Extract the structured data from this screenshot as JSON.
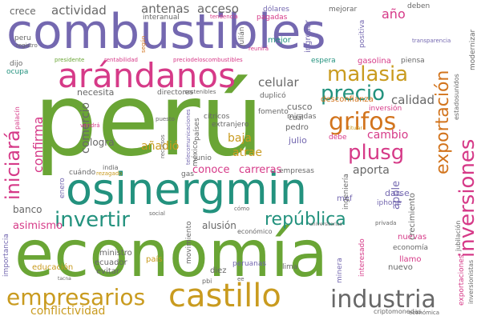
{
  "palette": {
    "purple": "#7468b0",
    "green": "#6aa535",
    "teal": "#23927e",
    "magenta": "#d63a88",
    "orange": "#d2741d",
    "mustard": "#c99b1f",
    "gray": "#686868"
  },
  "words": [
    {
      "text": "perú",
      "color": "#6aa535"
    },
    {
      "text": "combustibles",
      "color": "#7468b0"
    },
    {
      "text": "economía",
      "color": "#6aa535"
    },
    {
      "text": "osinergmin",
      "color": "#23927e"
    },
    {
      "text": "arándanos",
      "color": "#d63a88"
    },
    {
      "text": "castillo",
      "color": "#c99b1f"
    },
    {
      "text": "industria",
      "color": "#686868"
    },
    {
      "text": "empresarios",
      "color": "#c99b1f"
    },
    {
      "text": "inversiones",
      "color": "#d63a88"
    },
    {
      "text": "exportación",
      "color": "#d2741d"
    },
    {
      "text": "malasia",
      "color": "#c99b1f"
    },
    {
      "text": "precio",
      "color": "#23927e"
    },
    {
      "text": "grifos",
      "color": "#d2741d"
    },
    {
      "text": "plusg",
      "color": "#d63a88"
    },
    {
      "text": "invertir",
      "color": "#23927e"
    },
    {
      "text": "república",
      "color": "#23927e"
    },
    {
      "text": "iniciará",
      "color": "#d63a88"
    },
    {
      "text": "conflictividad",
      "color": "#c99b1f"
    },
    {
      "text": "calidad",
      "color": "#686868"
    },
    {
      "text": "celular",
      "color": "#686868"
    },
    {
      "text": "antenas",
      "color": "#686868"
    },
    {
      "text": "acceso",
      "color": "#686868"
    },
    {
      "text": "crece",
      "color": "#686868"
    },
    {
      "text": "actividad",
      "color": "#686868"
    },
    {
      "text": "año",
      "color": "#d63a88"
    },
    {
      "text": "confirma",
      "color": "#d63a88"
    },
    {
      "text": "comercio",
      "color": "#686868"
    },
    {
      "text": "baja",
      "color": "#c99b1f"
    },
    {
      "text": "atrae",
      "color": "#c99b1f"
    },
    {
      "text": "añadió",
      "color": "#c99b1f"
    },
    {
      "text": "cambio",
      "color": "#d63a88"
    },
    {
      "text": "aporta",
      "color": "#686868"
    },
    {
      "text": "conoce",
      "color": "#d63a88"
    },
    {
      "text": "carreras",
      "color": "#d63a88"
    },
    {
      "text": "banco",
      "color": "#686868"
    },
    {
      "text": "asimismo",
      "color": "#d63a88"
    },
    {
      "text": "alusión",
      "color": "#686868"
    },
    {
      "text": "apple",
      "color": "#7468b0"
    },
    {
      "text": "darse",
      "color": "#7468b0"
    },
    {
      "text": "iphone",
      "color": "#7468b0"
    },
    {
      "text": "mef",
      "color": "#7468b0"
    },
    {
      "text": "logra",
      "color": "#686868"
    },
    {
      "text": "necesita",
      "color": "#686868"
    },
    {
      "text": "julio",
      "color": "#7468b0"
    },
    {
      "text": "pedro",
      "color": "#686868"
    },
    {
      "text": "cusco",
      "color": "#686868"
    },
    {
      "text": "nuevas",
      "color": "#d63a88"
    },
    {
      "text": "llamo",
      "color": "#d63a88"
    },
    {
      "text": "nuevo",
      "color": "#686868"
    },
    {
      "text": "economía",
      "color": "#686868"
    },
    {
      "text": "ministro",
      "color": "#686868"
    },
    {
      "text": "ecuador",
      "color": "#686868"
    },
    {
      "text": "evitar",
      "color": "#686868"
    },
    {
      "text": "educación",
      "color": "#c99b1f"
    },
    {
      "text": "país",
      "color": "#c99b1f"
    },
    {
      "text": "diez",
      "color": "#686868"
    },
    {
      "text": "lima",
      "color": "#686868"
    },
    {
      "text": "peruanas",
      "color": "#7468b0"
    },
    {
      "text": "mejor",
      "color": "#23927e"
    },
    {
      "text": "espera",
      "color": "#23927e"
    },
    {
      "text": "gasolina",
      "color": "#d63a88"
    },
    {
      "text": "piensa",
      "color": "#686868"
    },
    {
      "text": "dólares",
      "color": "#7468b0"
    },
    {
      "text": "pagadas",
      "color": "#d63a88"
    },
    {
      "text": "mejorar",
      "color": "#686868"
    },
    {
      "text": "deben",
      "color": "#686868"
    },
    {
      "text": "ingresar",
      "color": "#7468b0"
    },
    {
      "text": "positiva",
      "color": "#7468b0"
    },
    {
      "text": "interanual",
      "color": "#686868"
    },
    {
      "text": "tendencia",
      "color": "#d63a88"
    },
    {
      "text": "julián",
      "color": "#686868"
    },
    {
      "text": "reunirá",
      "color": "#d63a88"
    },
    {
      "text": "peru",
      "color": "#686868"
    },
    {
      "text": "registro",
      "color": "#686868"
    },
    {
      "text": "presidente",
      "color": "#6aa535"
    },
    {
      "text": "rentabilidad",
      "color": "#d63a88"
    },
    {
      "text": "preciodeloscombustibles",
      "color": "#d63a88"
    },
    {
      "text": "dijo",
      "color": "#686868"
    },
    {
      "text": "ocupa",
      "color": "#23927e"
    },
    {
      "text": "duplicó",
      "color": "#686868"
    },
    {
      "text": "fomento",
      "color": "#686868"
    },
    {
      "text": "miradas",
      "color": "#686868"
    },
    {
      "text": "desconfianza",
      "color": "#d2741d"
    },
    {
      "text": "inversión",
      "color": "#d63a88"
    },
    {
      "text": "directores",
      "color": "#686868"
    },
    {
      "text": "sostenibles",
      "color": "#686868"
    },
    {
      "text": "cítricos",
      "color": "#686868"
    },
    {
      "text": "extranjero",
      "color": "#686868"
    },
    {
      "text": "cuál",
      "color": "#686868"
    },
    {
      "text": "debe",
      "color": "#d63a88"
    },
    {
      "text": "titular",
      "color": "#c99b1f"
    },
    {
      "text": "transparencia",
      "color": "#7468b0"
    },
    {
      "text": "modernizar",
      "color": "#686868"
    },
    {
      "text": "estadosunidos",
      "color": "#686868"
    },
    {
      "text": "crecimiento",
      "color": "#686868"
    },
    {
      "text": "jubilación",
      "color": "#686868"
    },
    {
      "text": "empresas",
      "color": "#686868"
    },
    {
      "text": "cuándo",
      "color": "#686868"
    },
    {
      "text": "india",
      "color": "#686868"
    },
    {
      "text": "rezagado",
      "color": "#c99b1f"
    },
    {
      "text": "méxico",
      "color": "#686868"
    },
    {
      "text": "junio",
      "color": "#686868"
    },
    {
      "text": "gas",
      "color": "#686868"
    },
    {
      "text": "vendrá",
      "color": "#d63a88"
    },
    {
      "text": "palacín",
      "color": "#d63a88"
    },
    {
      "text": "enero",
      "color": "#7468b0"
    },
    {
      "text": "social",
      "color": "#686868"
    },
    {
      "text": "cómo",
      "color": "#686868"
    },
    {
      "text": "universitarias",
      "color": "#686868"
    },
    {
      "text": "económico",
      "color": "#686868"
    },
    {
      "text": "privada",
      "color": "#686868"
    },
    {
      "text": "ingeniería",
      "color": "#686868"
    },
    {
      "text": "minera",
      "color": "#7468b0"
    },
    {
      "text": "interesado",
      "color": "#d63a88"
    },
    {
      "text": "exportaciones",
      "color": "#d63a88"
    },
    {
      "text": "inversionistas",
      "color": "#686868"
    },
    {
      "text": "importancia",
      "color": "#7468b0"
    },
    {
      "text": "tacna",
      "color": "#686868"
    },
    {
      "text": "pbi",
      "color": "#686868"
    },
    {
      "text": "movimiento",
      "color": "#686868"
    },
    {
      "text": "criptomonedas",
      "color": "#686868"
    },
    {
      "text": "económica",
      "color": "#686868"
    },
    {
      "text": "telecomunicaciones",
      "color": "#7468b0"
    },
    {
      "text": "recursos",
      "color": "#686868"
    },
    {
      "text": "puesto",
      "color": "#686868"
    },
    {
      "text": "ee",
      "color": "#686868"
    },
    {
      "text": "países",
      "color": "#686868"
    },
    {
      "text": "según",
      "color": "#d2741d"
    }
  ]
}
